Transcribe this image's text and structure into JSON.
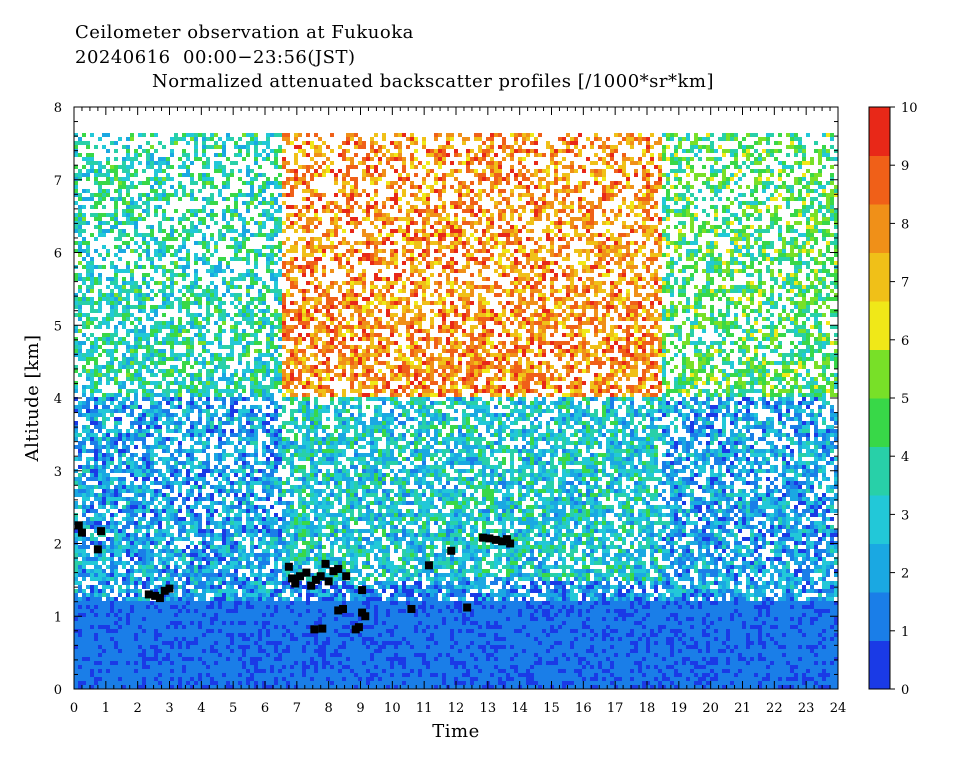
{
  "header": {
    "line1": "Ceilometer observation at Fukuoka",
    "line2": "20240616  00:00−23:56(JST)",
    "line3": "Normalized attenuated backscatter profiles [/1000*sr*km]"
  },
  "chart_data": {
    "type": "heatmap",
    "title": "Normalized attenuated backscatter profiles [/1000*sr*km]",
    "xlabel": "Time",
    "ylabel": "Altitude [km]",
    "xlim": [
      0,
      24
    ],
    "ylim": [
      0,
      8
    ],
    "x_ticks": [
      "0",
      "1",
      "2",
      "3",
      "4",
      "5",
      "6",
      "7",
      "8",
      "9",
      "10",
      "11",
      "12",
      "13",
      "14",
      "15",
      "16",
      "17",
      "18",
      "19",
      "20",
      "21",
      "22",
      "23",
      "24"
    ],
    "y_ticks": [
      "0",
      "1",
      "2",
      "3",
      "4",
      "5",
      "6",
      "7",
      "8"
    ],
    "colorbar": {
      "range": [
        0,
        10
      ],
      "ticks": [
        "0",
        "1",
        "2",
        "3",
        "4",
        "5",
        "6",
        "7",
        "8",
        "9",
        "10"
      ],
      "colors": [
        "#1a3ae6",
        "#1a7ee8",
        "#1aa8e2",
        "#22c8d8",
        "#28d0a8",
        "#38d848",
        "#78e028",
        "#f0e818",
        "#f0c018",
        "#f09018",
        "#f06018",
        "#e82818"
      ]
    },
    "data_top_altitude": 7.65,
    "backscatter_summary": [
      {
        "time_range": [
          0,
          24
        ],
        "altitude_range": [
          0,
          1.2
        ],
        "typical_value": 1.0
      },
      {
        "time_range": [
          0,
          6.5
        ],
        "altitude_range": [
          1.2,
          4.0
        ],
        "typical_value": 2.0
      },
      {
        "time_range": [
          0,
          6.5
        ],
        "altitude_range": [
          4.0,
          7.65
        ],
        "typical_value": 3.5
      },
      {
        "time_range": [
          6.5,
          18.5
        ],
        "altitude_range": [
          1.5,
          4.0
        ],
        "typical_value": 3.0
      },
      {
        "time_range": [
          6.5,
          18.5
        ],
        "altitude_range": [
          4.0,
          7.65
        ],
        "typical_value": 8.0
      },
      {
        "time_range": [
          18.5,
          24
        ],
        "altitude_range": [
          1.2,
          4.0
        ],
        "typical_value": 2.0
      },
      {
        "time_range": [
          18.5,
          24
        ],
        "altitude_range": [
          4.0,
          7.65
        ],
        "typical_value": 4.5
      }
    ],
    "cloud_base_points": [
      {
        "x": 0.15,
        "y": 2.25
      },
      {
        "x": 0.25,
        "y": 2.15
      },
      {
        "x": 0.75,
        "y": 1.92
      },
      {
        "x": 0.85,
        "y": 2.17
      },
      {
        "x": 2.35,
        "y": 1.3
      },
      {
        "x": 2.55,
        "y": 1.28
      },
      {
        "x": 2.7,
        "y": 1.25
      },
      {
        "x": 2.85,
        "y": 1.35
      },
      {
        "x": 3.0,
        "y": 1.38
      },
      {
        "x": 6.75,
        "y": 1.68
      },
      {
        "x": 6.85,
        "y": 1.52
      },
      {
        "x": 6.95,
        "y": 1.45
      },
      {
        "x": 7.1,
        "y": 1.55
      },
      {
        "x": 7.3,
        "y": 1.6
      },
      {
        "x": 7.45,
        "y": 1.42
      },
      {
        "x": 7.6,
        "y": 1.5
      },
      {
        "x": 7.75,
        "y": 1.55
      },
      {
        "x": 7.9,
        "y": 1.72
      },
      {
        "x": 8.0,
        "y": 1.48
      },
      {
        "x": 8.15,
        "y": 1.62
      },
      {
        "x": 8.3,
        "y": 1.65
      },
      {
        "x": 8.55,
        "y": 1.55
      },
      {
        "x": 7.55,
        "y": 0.82
      },
      {
        "x": 7.8,
        "y": 0.83
      },
      {
        "x": 8.3,
        "y": 1.08
      },
      {
        "x": 8.45,
        "y": 1.1
      },
      {
        "x": 8.85,
        "y": 0.82
      },
      {
        "x": 8.95,
        "y": 0.85
      },
      {
        "x": 9.05,
        "y": 1.05
      },
      {
        "x": 9.15,
        "y": 1.0
      },
      {
        "x": 9.05,
        "y": 1.36
      },
      {
        "x": 10.6,
        "y": 1.1
      },
      {
        "x": 11.15,
        "y": 1.7
      },
      {
        "x": 11.85,
        "y": 1.9
      },
      {
        "x": 12.35,
        "y": 1.12
      },
      {
        "x": 12.85,
        "y": 2.08
      },
      {
        "x": 13.05,
        "y": 2.07
      },
      {
        "x": 13.25,
        "y": 2.05
      },
      {
        "x": 13.45,
        "y": 2.03
      },
      {
        "x": 13.6,
        "y": 2.06
      },
      {
        "x": 13.7,
        "y": 2.0
      }
    ]
  }
}
